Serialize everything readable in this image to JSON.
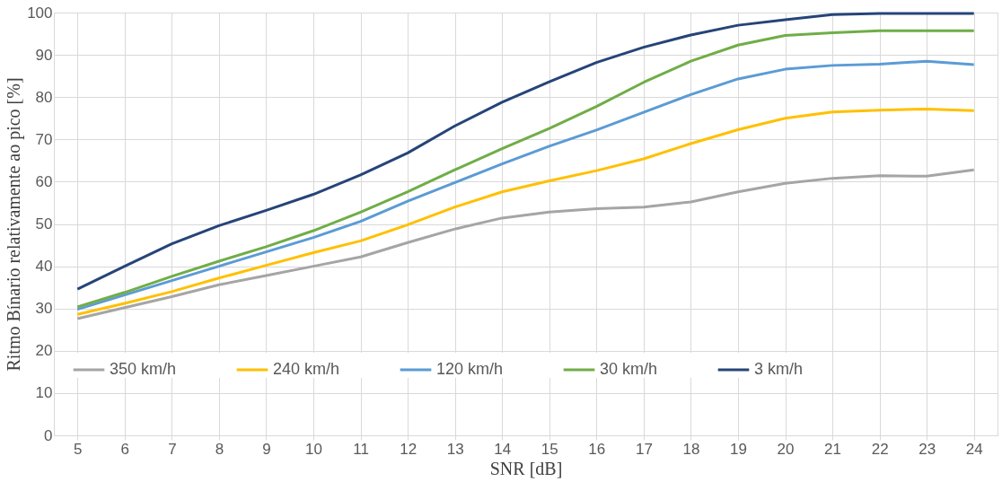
{
  "chart_data": {
    "type": "line",
    "xlabel": "SNR [dB]",
    "ylabel": "Ritmo Bínario relativamente ao pico [%]",
    "categories": [
      "5",
      "6",
      "7",
      "8",
      "9",
      "10",
      "11",
      "12",
      "13",
      "14",
      "15",
      "16",
      "17",
      "18",
      "19",
      "20",
      "21",
      "22",
      "23",
      "24"
    ],
    "series": [
      {
        "name": "350 km/h",
        "color": "#a5a5a5",
        "values": [
          27.6,
          30.2,
          32.8,
          35.6,
          37.8,
          40,
          42.2,
          45.6,
          48.8,
          51.4,
          52.8,
          53.6,
          54,
          55.2,
          57.6,
          59.6,
          60.8,
          61.4,
          61.3,
          62.8
        ]
      },
      {
        "name": "240 km/h",
        "color": "#ffc000",
        "values": [
          28.6,
          31.2,
          34,
          37.2,
          40.2,
          43.2,
          46,
          49.8,
          54,
          57.6,
          60.2,
          62.6,
          65.4,
          69,
          72.3,
          75,
          76.5,
          76.9,
          77.2,
          76.8
        ]
      },
      {
        "name": "120 km/h",
        "color": "#5b9bd5",
        "values": [
          29.8,
          33.2,
          36.6,
          40,
          43.4,
          46.8,
          50.6,
          55.4,
          59.8,
          64.2,
          68.4,
          72.2,
          76.4,
          80.6,
          84.3,
          86.6,
          87.5,
          87.8,
          88.5,
          87.7
        ]
      },
      {
        "name": "30 km/h",
        "color": "#70ad47",
        "values": [
          30.4,
          33.8,
          37.6,
          41.2,
          44.6,
          48.4,
          52.8,
          57.6,
          62.8,
          67.8,
          72.6,
          77.8,
          83.5,
          88.5,
          92.3,
          94.6,
          95.2,
          95.7,
          95.7,
          95.7
        ]
      },
      {
        "name": "3 km/h",
        "color": "#264478",
        "values": [
          34.6,
          40,
          45.3,
          49.6,
          53.2,
          57,
          61.6,
          66.8,
          73.2,
          78.8,
          83.6,
          88.2,
          91.8,
          94.7,
          97,
          98.3,
          99.5,
          99.8,
          99.8,
          99.8
        ]
      }
    ],
    "ylim": [
      0,
      100
    ],
    "yticks": [
      0,
      10,
      20,
      30,
      40,
      50,
      60,
      70,
      80,
      90,
      100
    ],
    "grid": true,
    "legend": "bottom",
    "marker": "none",
    "line_style": "solid"
  }
}
